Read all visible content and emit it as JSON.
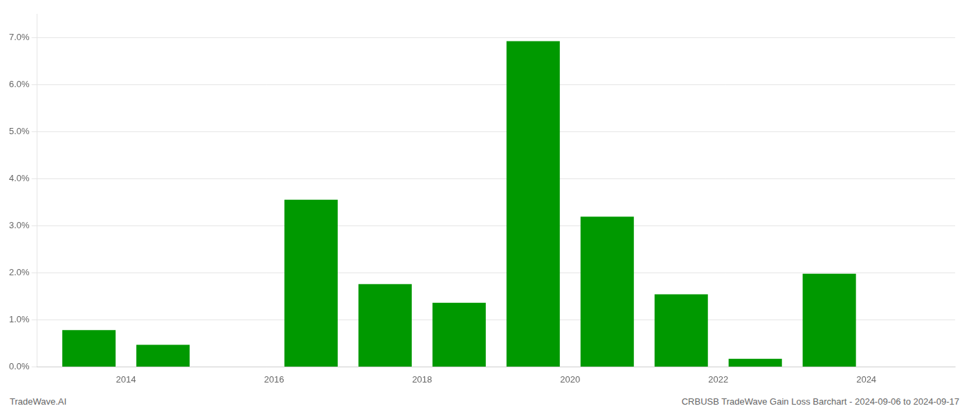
{
  "chart_data": {
    "type": "bar",
    "x": [
      2013,
      2014,
      2016,
      2017,
      2018,
      2019,
      2020,
      2021,
      2022,
      2023
    ],
    "values": [
      0.0078,
      0.0047,
      0.0355,
      0.0176,
      0.0136,
      0.0692,
      0.0319,
      0.0154,
      0.0017,
      0.0198
    ],
    "color": "#009900",
    "xlim": [
      2012.3,
      2024.7
    ],
    "xticks": [
      {
        "value": 2013.5,
        "label": "2014"
      },
      {
        "value": 2015.5,
        "label": "2016"
      },
      {
        "value": 2017.5,
        "label": "2018"
      },
      {
        "value": 2019.5,
        "label": "2020"
      },
      {
        "value": 2021.5,
        "label": "2022"
      },
      {
        "value": 2023.5,
        "label": "2024"
      }
    ],
    "ylim": [
      0,
      0.075
    ],
    "yticks": [
      {
        "value": 0.0,
        "label": "0.0%"
      },
      {
        "value": 0.01,
        "label": "1.0%"
      },
      {
        "value": 0.02,
        "label": "2.0%"
      },
      {
        "value": 0.03,
        "label": "3.0%"
      },
      {
        "value": 0.04,
        "label": "4.0%"
      },
      {
        "value": 0.05,
        "label": "5.0%"
      },
      {
        "value": 0.06,
        "label": "6.0%"
      },
      {
        "value": 0.07,
        "label": "7.0%"
      }
    ],
    "grid": true,
    "annotations": [
      "TradeWave.AI",
      "CRBUSB TradeWave Gain Loss Barchart - 2024-09-06 to 2024-09-17"
    ]
  }
}
